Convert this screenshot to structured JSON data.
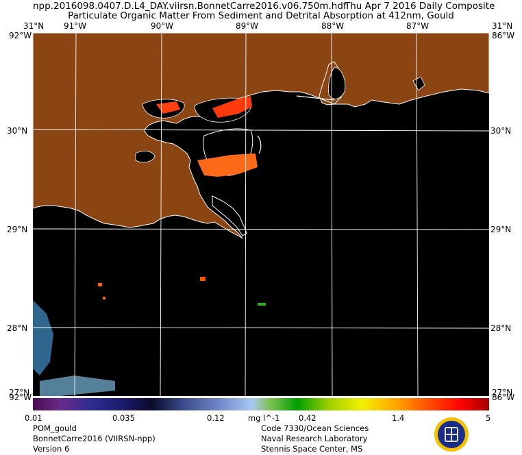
{
  "header": {
    "filename": "npp.2016098.0407.D.L4_DAY.viirsn.BonnetCarre2016.v06.750m.hdf",
    "date": "Thu Apr  7 2016 Daily Composite",
    "subtitle": "Particulate Organic Matter From Sediment and Detrital Absorption at 412nm, Gould"
  },
  "map": {
    "lon_labels": [
      "91°W",
      "90°W",
      "89°W",
      "88°W",
      "87°W"
    ],
    "lat_labels": [
      "30°N",
      "29°N",
      "28°N"
    ],
    "corner_top_left": "31°N",
    "corner_top_right": "31°N",
    "corner_bottom_left": "27°N",
    "corner_bottom_right": "27°N",
    "edge_left_top": "92°W",
    "edge_right_top": "86°W",
    "edge_left_bottom": "92°W",
    "edge_right_bottom": "86°W",
    "land_color": "#8B4513",
    "water_color": "#000000",
    "grid_color": "#ffffff",
    "lon_range": [
      -91.5,
      -86.25
    ],
    "lat_range": [
      27.4,
      31.0
    ]
  },
  "colorbar": {
    "ticks": [
      "0.01",
      "0.035",
      "0.12",
      "0.42",
      "1.4",
      "5"
    ],
    "units": "mg l^-1",
    "colors": [
      "#4b0b4f",
      "#6a2a8a",
      "#2b2e8f",
      "#1a1a6a",
      "#0a0a2a",
      "#3a4a8a",
      "#7a90d0",
      "#a8c8f0",
      "#7ec050",
      "#00a000",
      "#a0d000",
      "#f0f000",
      "#ffa000",
      "#ff4000",
      "#ff0000",
      "#a00000"
    ]
  },
  "footer": {
    "left": [
      "POM_gould",
      "BonnetCarre2016 (VIIRSN-npp)",
      "Version 6"
    ],
    "right": [
      "Code 7330/Ocean Sciences",
      "Naval Research Laboratory",
      "Stennis Space Center, MS"
    ]
  }
}
